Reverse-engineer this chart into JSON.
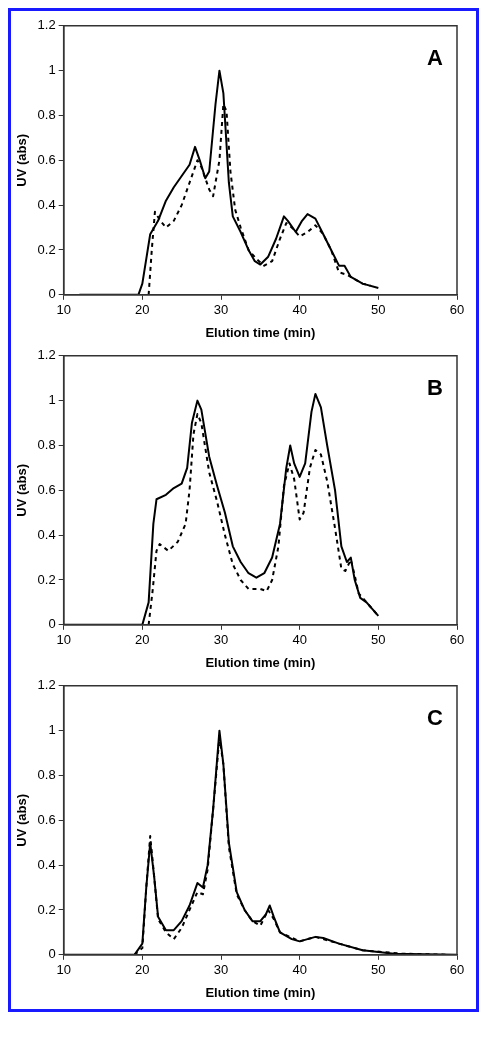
{
  "chart_data": [
    {
      "type": "line",
      "xlabel": "Elution time (min)",
      "ylabel": "UV (abs)",
      "annotations": [
        "A"
      ],
      "xlim": [
        10,
        60
      ],
      "xticks": [
        10,
        20,
        30,
        40,
        50,
        60
      ],
      "ylim": [
        0,
        1.2
      ],
      "yticks": [
        0,
        0.2,
        0.4,
        0.6,
        0.8,
        1,
        1.2
      ],
      "grid": false,
      "legend": false,
      "marker": "none",
      "series": [
        {
          "color": "#000000",
          "line_style": "solid",
          "x": [
            12,
            19.5,
            20,
            21,
            22,
            23,
            24,
            25,
            26,
            26.7,
            27.3,
            28,
            28.5,
            29.3,
            29.8,
            30.3,
            31,
            31.5,
            32.5,
            33.5,
            34.3,
            35,
            36,
            37,
            38,
            38.5,
            39.5,
            40.3,
            41,
            42,
            43,
            44,
            45,
            45.7,
            46.5,
            48,
            50
          ],
          "values": [
            0,
            0,
            0.05,
            0.27,
            0.33,
            0.42,
            0.48,
            0.53,
            0.58,
            0.66,
            0.6,
            0.52,
            0.55,
            0.85,
            1.0,
            0.9,
            0.5,
            0.35,
            0.28,
            0.2,
            0.15,
            0.135,
            0.17,
            0.25,
            0.35,
            0.33,
            0.28,
            0.33,
            0.36,
            0.34,
            0.27,
            0.2,
            0.13,
            0.13,
            0.08,
            0.05,
            0.03
          ]
        },
        {
          "color": "#000000",
          "line_style": "dashed",
          "x": [
            20.8,
            21.2,
            21.6,
            22.3,
            23,
            24,
            25,
            26,
            27,
            27.5,
            28.5,
            29,
            29.8,
            30.3,
            30.7,
            31.2,
            31.8,
            32.5,
            33.5,
            34.5,
            35.5,
            36.5,
            37.5,
            38.3,
            39,
            40,
            41,
            42,
            43,
            44,
            45,
            46,
            47,
            48,
            49
          ],
          "values": [
            0,
            0.2,
            0.37,
            0.33,
            0.3,
            0.33,
            0.4,
            0.5,
            0.6,
            0.57,
            0.47,
            0.44,
            0.6,
            0.85,
            0.82,
            0.55,
            0.38,
            0.3,
            0.2,
            0.16,
            0.13,
            0.15,
            0.25,
            0.32,
            0.3,
            0.26,
            0.28,
            0.31,
            0.27,
            0.2,
            0.1,
            0.09,
            0.07,
            0.05,
            0.04
          ]
        }
      ]
    },
    {
      "type": "line",
      "xlabel": "Elution time (min)",
      "ylabel": "UV (abs)",
      "annotations": [
        "B"
      ],
      "xlim": [
        10,
        60
      ],
      "xticks": [
        10,
        20,
        30,
        40,
        50,
        60
      ],
      "ylim": [
        0,
        1.2
      ],
      "yticks": [
        0,
        0.2,
        0.4,
        0.6,
        0.8,
        1,
        1.2
      ],
      "grid": false,
      "legend": false,
      "marker": "none",
      "series": [
        {
          "color": "#000000",
          "line_style": "solid",
          "x": [
            10,
            20,
            20.8,
            21.4,
            21.8,
            23,
            24,
            25,
            25.7,
            26.3,
            27,
            27.5,
            28.5,
            29.5,
            30.5,
            31.5,
            32.5,
            33.5,
            34.5,
            35.5,
            36.5,
            37.5,
            38.3,
            38.8,
            39.3,
            40,
            40.7,
            41.5,
            42,
            42.7,
            43.5,
            44.5,
            45.3,
            46,
            46.5,
            47,
            47.7,
            48.5,
            50
          ],
          "values": [
            0,
            0,
            0.1,
            0.45,
            0.56,
            0.58,
            0.61,
            0.63,
            0.7,
            0.9,
            1.0,
            0.96,
            0.75,
            0.62,
            0.5,
            0.35,
            0.28,
            0.23,
            0.21,
            0.23,
            0.3,
            0.45,
            0.7,
            0.8,
            0.72,
            0.66,
            0.72,
            0.95,
            1.03,
            0.97,
            0.8,
            0.6,
            0.35,
            0.28,
            0.3,
            0.2,
            0.12,
            0.1,
            0.04
          ]
        },
        {
          "color": "#000000",
          "line_style": "dashed",
          "x": [
            20.8,
            21.3,
            21.8,
            22.2,
            23.3,
            24.5,
            25.5,
            26,
            26.5,
            27,
            27.5,
            28.5,
            29.5,
            30.5,
            31.5,
            32.5,
            33.5,
            35,
            35.8,
            36.5,
            37.3,
            38,
            38.7,
            39.3,
            40,
            40.5,
            41.3,
            42,
            42.7,
            43.5,
            44.5,
            45.3,
            45.8,
            46.5,
            47,
            47.5,
            48.5,
            50
          ],
          "values": [
            0,
            0.15,
            0.33,
            0.36,
            0.33,
            0.37,
            0.45,
            0.6,
            0.85,
            0.94,
            0.9,
            0.68,
            0.55,
            0.4,
            0.27,
            0.2,
            0.16,
            0.16,
            0.15,
            0.2,
            0.35,
            0.62,
            0.72,
            0.65,
            0.47,
            0.5,
            0.7,
            0.78,
            0.76,
            0.64,
            0.43,
            0.25,
            0.24,
            0.29,
            0.22,
            0.14,
            0.1,
            0.04
          ]
        }
      ]
    },
    {
      "type": "line",
      "xlabel": "Elution time (min)",
      "ylabel": "UV (abs)",
      "annotations": [
        "C"
      ],
      "xlim": [
        10,
        60
      ],
      "xticks": [
        10,
        20,
        30,
        40,
        50,
        60
      ],
      "ylim": [
        0,
        1.2
      ],
      "yticks": [
        0,
        0.2,
        0.4,
        0.6,
        0.8,
        1,
        1.2
      ],
      "grid": false,
      "legend": false,
      "marker": "none",
      "series": [
        {
          "color": "#000000",
          "line_style": "solid",
          "x": [
            10,
            19,
            20,
            20.5,
            21,
            21.5,
            22,
            23,
            24,
            25,
            26,
            27,
            27.7,
            28.3,
            29,
            29.8,
            30.3,
            31,
            32,
            33,
            34,
            35,
            35.7,
            36.2,
            36.7,
            37.5,
            39,
            40,
            41,
            42,
            43,
            45,
            48,
            52,
            60
          ],
          "values": [
            0,
            0,
            0.05,
            0.3,
            0.5,
            0.35,
            0.17,
            0.11,
            0.11,
            0.15,
            0.22,
            0.32,
            0.3,
            0.4,
            0.65,
            1.0,
            0.85,
            0.5,
            0.28,
            0.2,
            0.15,
            0.15,
            0.18,
            0.22,
            0.17,
            0.1,
            0.07,
            0.06,
            0.07,
            0.08,
            0.075,
            0.05,
            0.02,
            0.005,
            0
          ]
        },
        {
          "color": "#000000",
          "line_style": "dashed",
          "x": [
            19,
            20,
            20.5,
            21,
            21.5,
            22,
            23,
            24,
            25,
            26,
            27,
            27.7,
            28.3,
            29,
            29.8,
            30.3,
            31,
            32,
            33,
            34,
            35,
            36,
            36.7,
            37.5,
            40,
            42,
            45,
            48,
            53,
            59
          ],
          "values": [
            0,
            0.03,
            0.3,
            0.53,
            0.35,
            0.16,
            0.1,
            0.07,
            0.12,
            0.2,
            0.28,
            0.27,
            0.38,
            0.65,
            0.97,
            0.85,
            0.48,
            0.27,
            0.2,
            0.15,
            0.13,
            0.2,
            0.16,
            0.1,
            0.06,
            0.08,
            0.05,
            0.02,
            0.005,
            0
          ]
        }
      ]
    }
  ]
}
